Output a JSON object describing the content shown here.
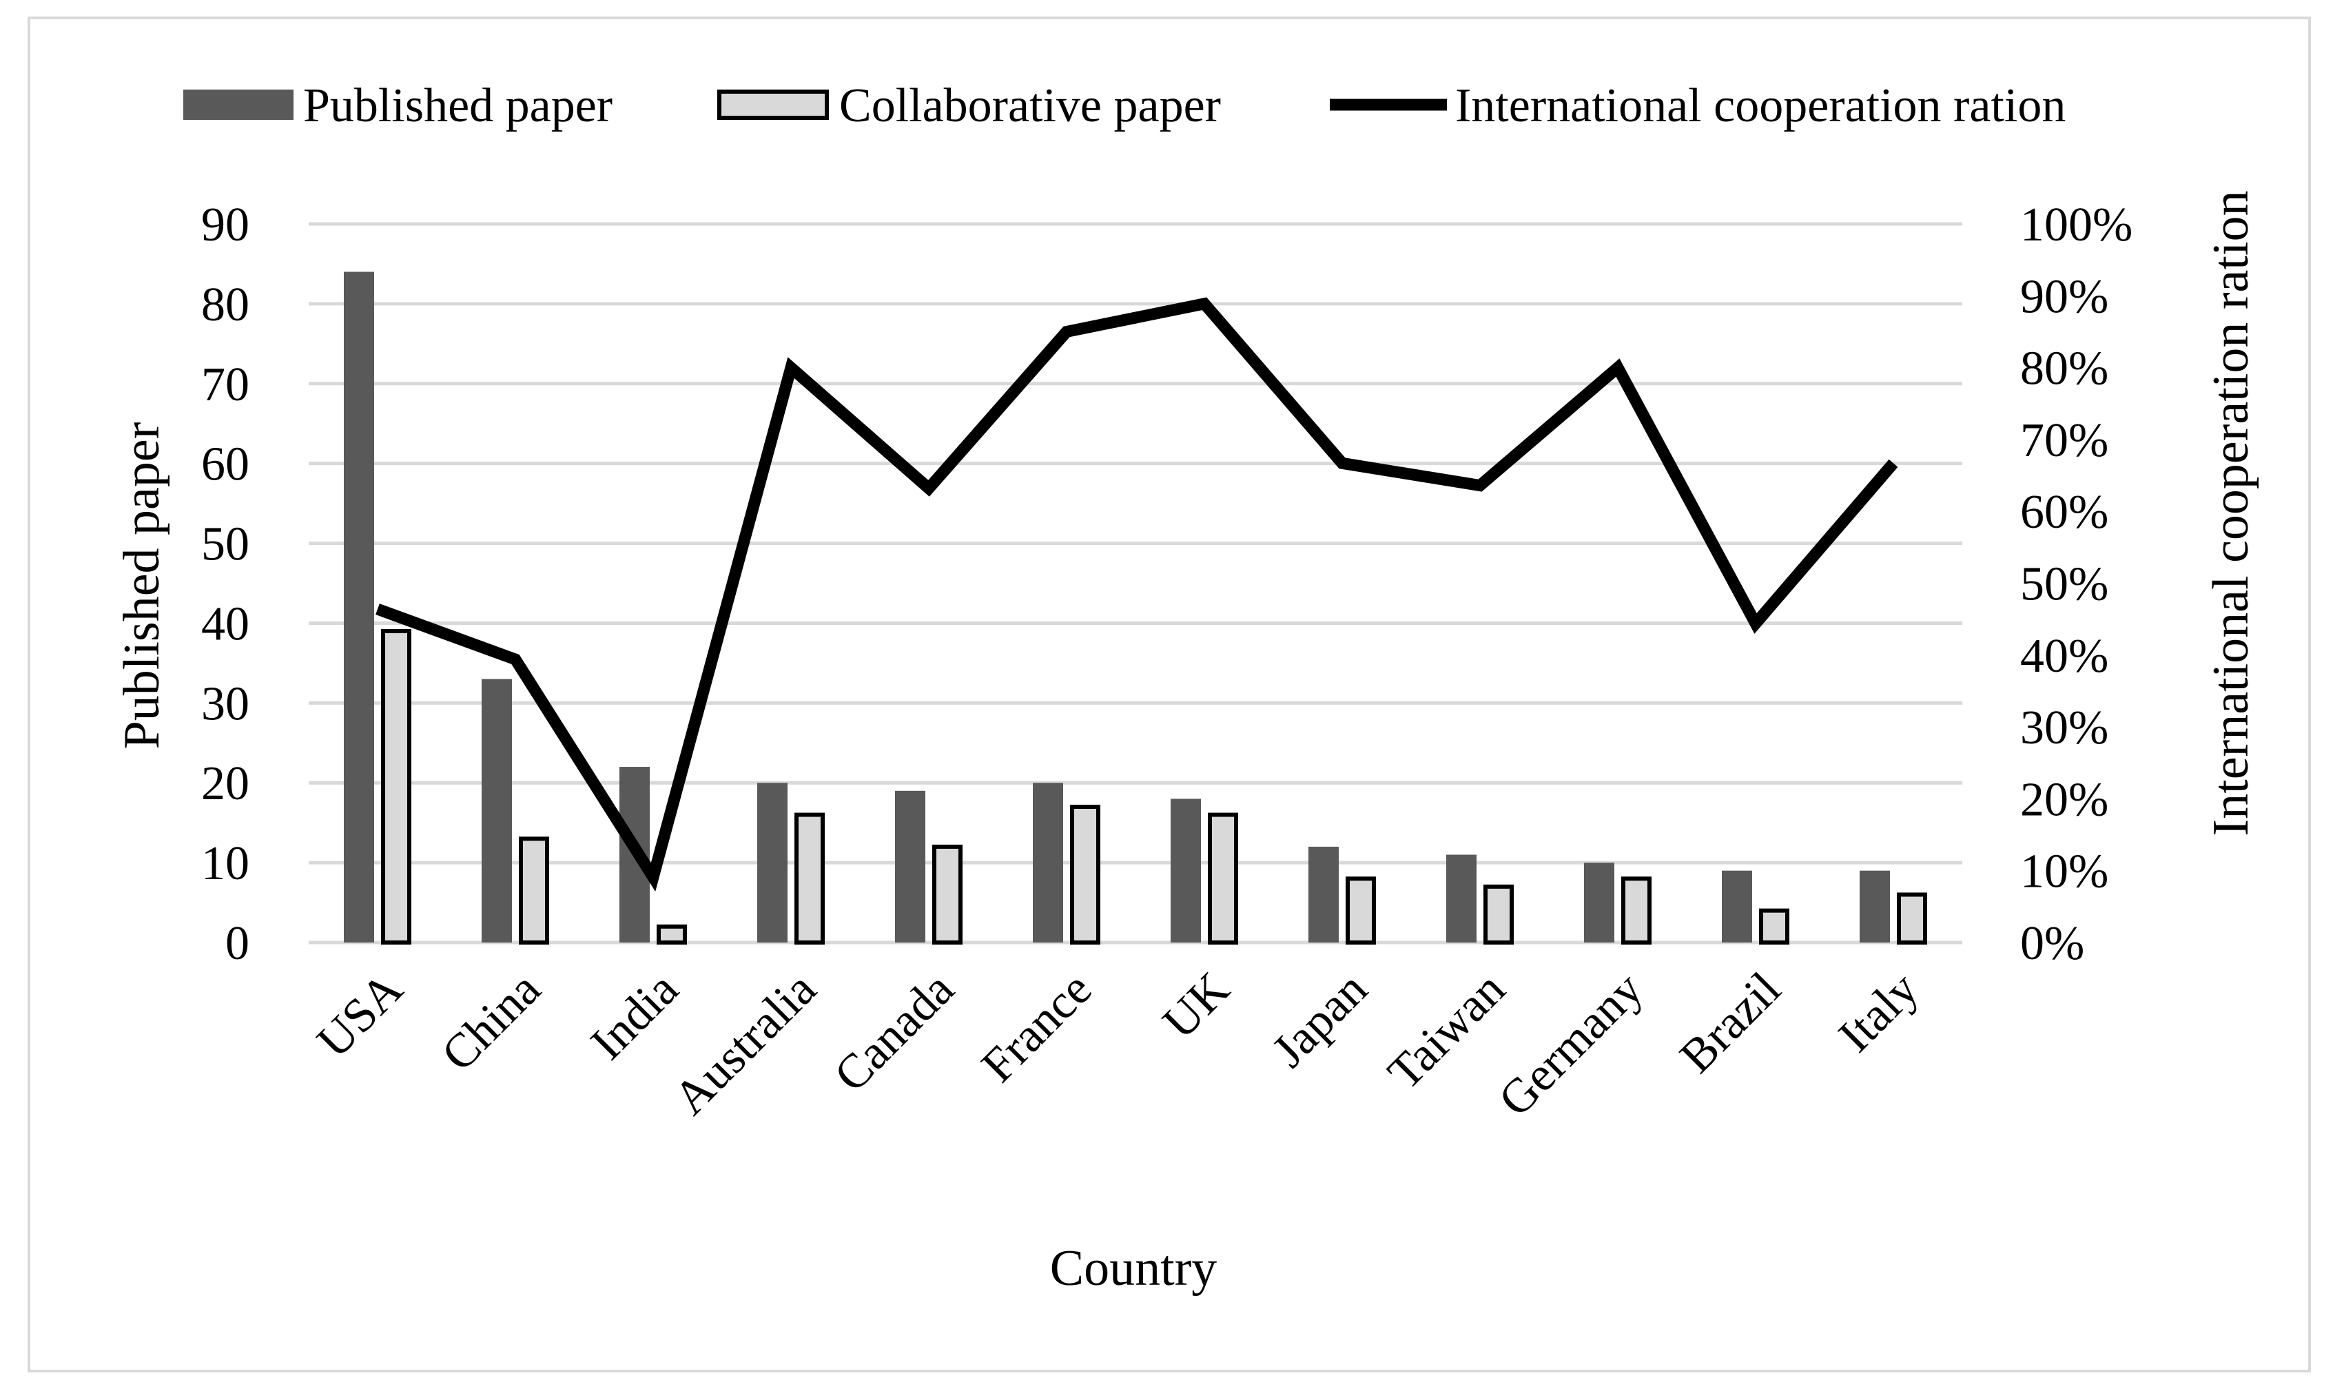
{
  "chart_data": {
    "type": "bar",
    "title": "",
    "categories": [
      "USA",
      "China",
      "India",
      "Australia",
      "Canada",
      "France",
      "UK",
      "Japan",
      "Taiwan",
      "Germany",
      "Brazil",
      "Italy"
    ],
    "series": [
      {
        "name": "Published paper",
        "type": "bar",
        "axis": "left",
        "color": "#595959",
        "values": [
          84,
          33,
          22,
          20,
          19,
          20,
          18,
          12,
          11,
          10,
          9,
          9
        ]
      },
      {
        "name": "Collaborative paper",
        "type": "bar",
        "axis": "left",
        "color": "#d9d9d9",
        "values": [
          39,
          13,
          2,
          16,
          12,
          17,
          16,
          8,
          7,
          8,
          4,
          6
        ]
      },
      {
        "name": "International cooperation ration",
        "type": "line",
        "axis": "right",
        "color": "#000000",
        "values": [
          0.464,
          0.394,
          0.091,
          0.8,
          0.632,
          0.85,
          0.889,
          0.667,
          0.636,
          0.8,
          0.444,
          0.667
        ]
      }
    ],
    "xlabel": "Country",
    "ylabel": "Published paper",
    "y2label": "International cooperation ration",
    "ylim": [
      0,
      90
    ],
    "yticks": [
      "0",
      "10",
      "20",
      "30",
      "40",
      "50",
      "60",
      "70",
      "80",
      "90"
    ],
    "y2lim": [
      0,
      1
    ],
    "y2ticks": [
      "0%",
      "10%",
      "20%",
      "30%",
      "40%",
      "50%",
      "60%",
      "70%",
      "80%",
      "90%",
      "100%"
    ],
    "grid": true,
    "legend_position": "top"
  }
}
